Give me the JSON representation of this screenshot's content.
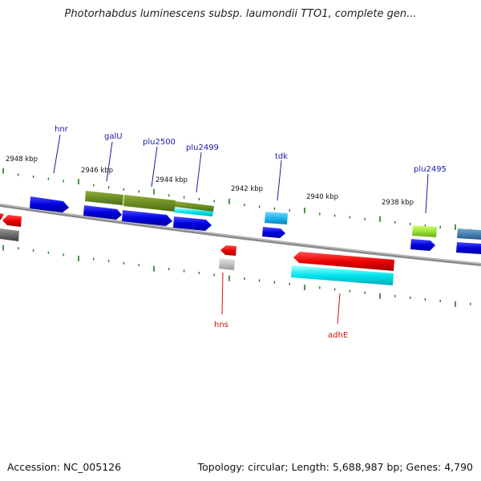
{
  "title": "Photorhabdus luminescens subsp. laumondii TTO1, complete gen...",
  "footer": {
    "accession": "Accession: NC_005126",
    "summary": "Topology: circular; Length: 5,688,987 bp; Genes: 4,790"
  },
  "colors": {
    "backbone": "#8a8a8a",
    "tick": "#1f7a1f",
    "label_forward": "#1a1aa6",
    "label_reverse": "#d01010"
  },
  "kbp_labels": [
    "2948 kbp",
    "2946 kbp",
    "2944 kbp",
    "2942 kbp",
    "2940 kbp",
    "2938 kbp"
  ],
  "gene_labels_forward": [
    "hnr",
    "galU",
    "plu2500",
    "plu2499",
    "tdk",
    "plu2495"
  ],
  "gene_labels_reverse": [
    "hns",
    "adhE"
  ]
}
